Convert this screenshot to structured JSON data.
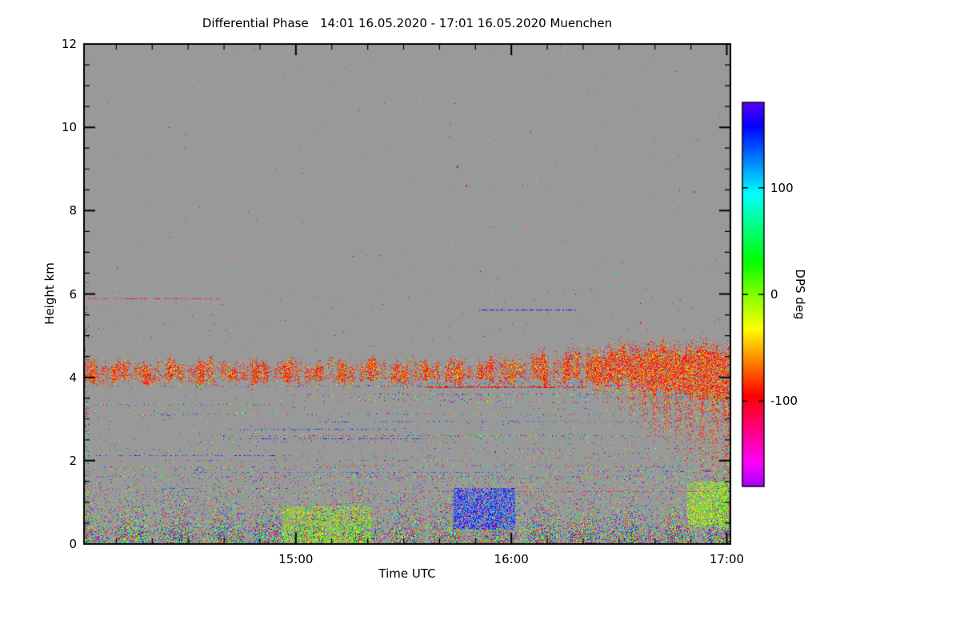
{
  "chart_data": {
    "type": "heatmap",
    "title": "Differential Phase   14:01 16.05.2020 - 17:01 16.05.2020 Muenchen",
    "xlabel": "Time UTC",
    "ylabel": "Height km",
    "x_start_label": "14:01",
    "x_end_label": "17:01",
    "x_range_minutes": [
      0,
      180
    ],
    "x_ticks": [
      {
        "label": "15:00",
        "min": 59
      },
      {
        "label": "16:00",
        "min": 119
      },
      {
        "label": "17:00",
        "min": 179
      }
    ],
    "x_minor_step_min": 10,
    "y_range_km": [
      0,
      12
    ],
    "y_ticks": [
      0,
      2,
      4,
      6,
      8,
      10,
      12
    ],
    "y_minor_step_km": 0.5,
    "colorbar": {
      "label": "DPS deg",
      "range": [
        -180,
        180
      ],
      "ticks": [
        100,
        0,
        -100
      ],
      "colormap": "cyclic-hue-phase"
    },
    "background_color": "#999999",
    "grid": false,
    "features": {
      "seed": 1337,
      "surface": {
        "top_km": 1.8,
        "dense_top_km": 0.22,
        "decay_km": 0.45,
        "max_density": 0.92
      },
      "band": {
        "top_base_km": 4.3,
        "bot_base_km": 3.9,
        "ramp_start_min": 105,
        "ramp_km": 0.3,
        "deepen_start_min": 150,
        "deepen_km": 0.5,
        "fray_start_min": 138,
        "fray_rate_km_per_min": 0.058,
        "core_density": 0.85
      },
      "ambient": {
        "low_density": 0.01,
        "mid_density": 0.003,
        "high_density": 0.0007
      },
      "edge_strips": {
        "left_min": 1.3,
        "left_max_km": 6.3,
        "left_density": 0.2,
        "right_min": 177.8,
        "right_max_km": 2.35,
        "right_density": 0.38
      },
      "streaks": [
        {
          "h": 5.88,
          "t0": 1,
          "t1": 38,
          "d": 0.5,
          "v": -122
        },
        {
          "h": 5.62,
          "t0": 110,
          "t1": 137,
          "d": 0.6,
          "v": 168
        },
        {
          "h": 2.12,
          "t0": 2,
          "t1": 58,
          "d": 0.28,
          "v": 160
        },
        {
          "h": 2.75,
          "t0": 40,
          "t1": 88,
          "d": 0.3,
          "v": 140
        },
        {
          "h": 3.35,
          "t0": 0,
          "t1": 55,
          "d": 0.22,
          "thick": 2
        },
        {
          "h": 3.55,
          "t0": 60,
          "t1": 150,
          "d": 0.12
        },
        {
          "h": 3.1,
          "t0": 20,
          "t1": 170,
          "d": 0.1
        },
        {
          "h": 2.45,
          "t0": 25,
          "t1": 110,
          "d": 0.12
        },
        {
          "h": 1.85,
          "t0": 0,
          "t1": 180,
          "d": 0.15,
          "thick": 2
        },
        {
          "h": 1.62,
          "t0": 0,
          "t1": 180,
          "d": 0.2,
          "thick": 2
        },
        {
          "h": 2.3,
          "t0": 95,
          "t1": 175,
          "d": 0.15
        },
        {
          "h": 2.95,
          "t0": 100,
          "t1": 160,
          "d": 0.12,
          "v": 130
        },
        {
          "h": 3.78,
          "t0": 95,
          "t1": 140,
          "d": 0.55,
          "v": -95,
          "thick": 2
        }
      ],
      "random_streaks": {
        "count": 55,
        "h_min": 1.25,
        "h_max": 4.0,
        "len_min": 8,
        "len_max": 130,
        "d_min": 0.05,
        "d_max": 0.3,
        "mono_fraction": 0.35,
        "mono_values": [
          165,
          150,
          135,
          120,
          -150,
          -120
        ]
      },
      "patches": [
        {
          "t0": 103,
          "t1": 120,
          "h0": 0.35,
          "h1": 1.35,
          "d": 0.5,
          "v0": 110,
          "v1": 195
        },
        {
          "t0": 168,
          "t1": 179.5,
          "h0": 0.4,
          "h1": 1.5,
          "d": 0.45,
          "v0": -45,
          "v1": 30
        },
        {
          "t0": 55,
          "t1": 80,
          "h0": 0.0,
          "h1": 0.9,
          "d": 0.35,
          "v0": -60,
          "v1": 40
        }
      ],
      "dots": [
        {
          "t": 104,
          "h": 9.05,
          "v": 150
        },
        {
          "t": 106.5,
          "h": 8.6,
          "v": -100
        },
        {
          "t": 170,
          "h": 8.45,
          "v": -120
        },
        {
          "t": 148,
          "h": 6.5,
          "v": 80
        },
        {
          "t": 75,
          "h": 6.9,
          "v": -150
        },
        {
          "t": 120,
          "h": 7.6,
          "v": 60
        },
        {
          "t": 40,
          "h": 6.6,
          "v": 100
        },
        {
          "t": 155,
          "h": 5.3,
          "v": -90
        }
      ]
    }
  }
}
